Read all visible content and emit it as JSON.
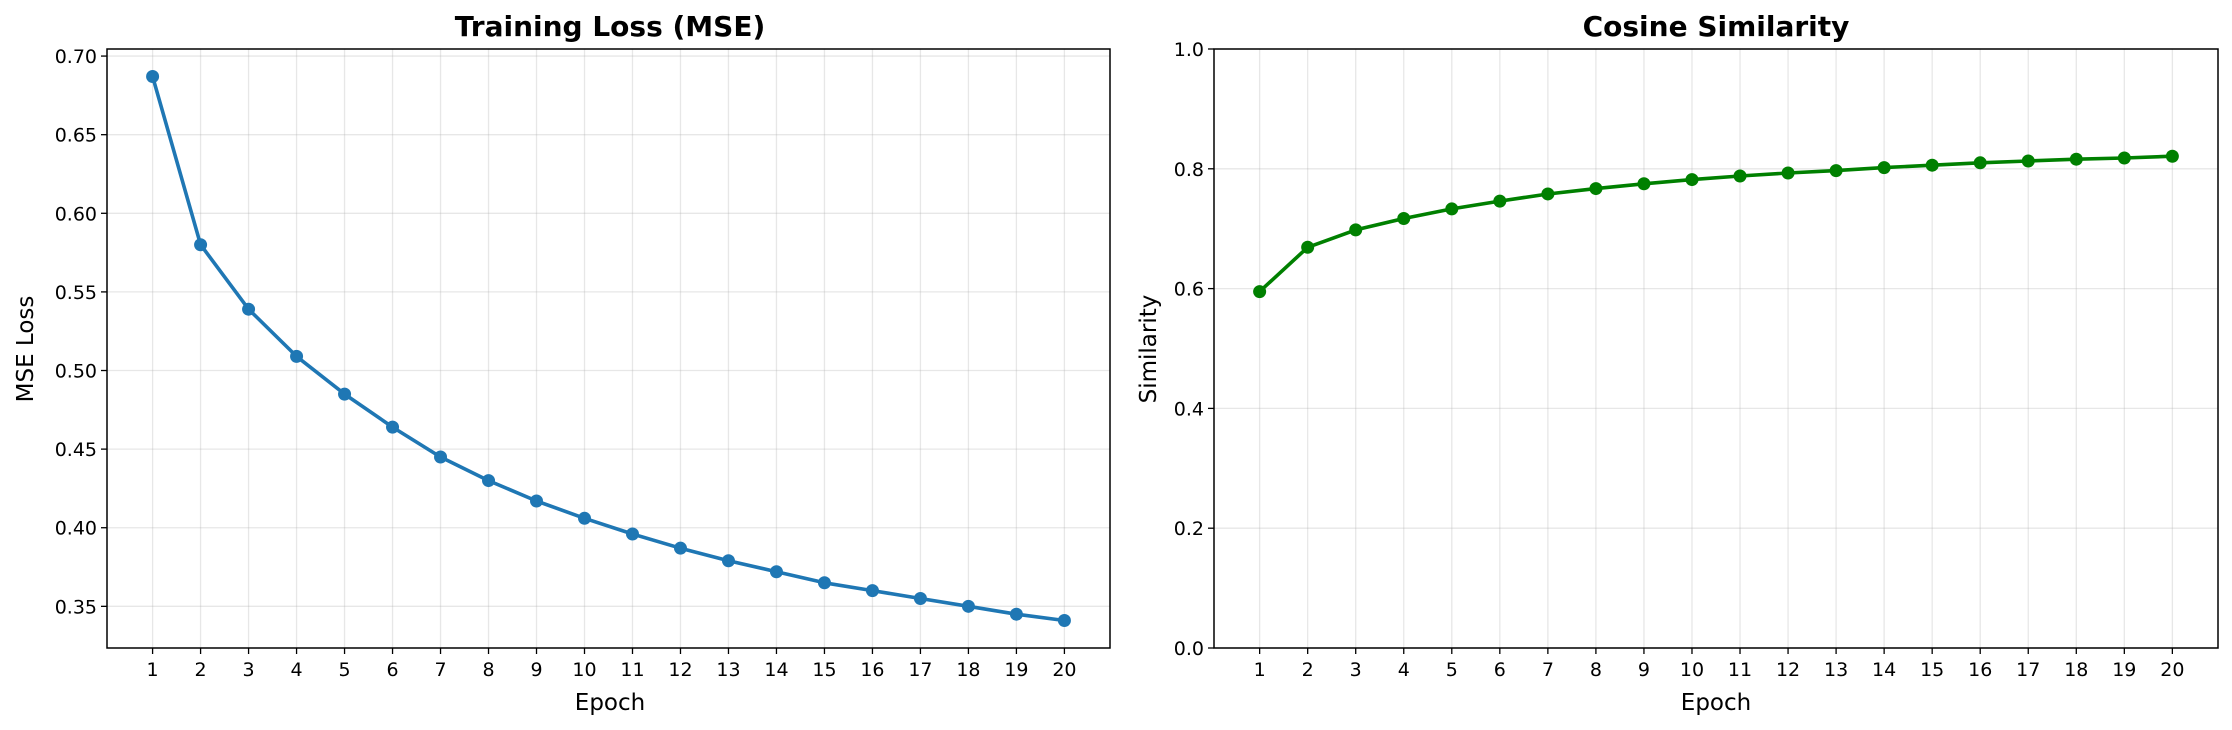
{
  "chart_data": [
    {
      "type": "line",
      "title": "Training Loss (MSE)",
      "xlabel": "Epoch",
      "ylabel": "MSE Loss",
      "categories": [
        "1",
        "2",
        "3",
        "4",
        "5",
        "6",
        "7",
        "8",
        "9",
        "10",
        "11",
        "12",
        "13",
        "14",
        "15",
        "16",
        "17",
        "18",
        "19",
        "20"
      ],
      "series": [
        {
          "name": "MSE Loss",
          "color": "#1f77b4",
          "values": [
            0.687,
            0.58,
            0.539,
            0.509,
            0.485,
            0.464,
            0.445,
            0.43,
            0.417,
            0.406,
            0.396,
            0.387,
            0.379,
            0.372,
            0.365,
            0.36,
            0.355,
            0.35,
            0.345,
            0.341
          ]
        }
      ],
      "xlim": [
        0.05,
        20.95
      ],
      "ylim": [
        0.3235,
        0.7045
      ],
      "yticks": [
        0.35,
        0.4,
        0.45,
        0.5,
        0.55,
        0.6,
        0.65,
        0.7
      ],
      "ytick_labels": [
        "0.35",
        "0.40",
        "0.45",
        "0.50",
        "0.55",
        "0.60",
        "0.65",
        "0.70"
      ],
      "grid": true
    },
    {
      "type": "line",
      "title": "Cosine Similarity",
      "xlabel": "Epoch",
      "ylabel": "Similarity",
      "categories": [
        "1",
        "2",
        "3",
        "4",
        "5",
        "6",
        "7",
        "8",
        "9",
        "10",
        "11",
        "12",
        "13",
        "14",
        "15",
        "16",
        "17",
        "18",
        "19",
        "20"
      ],
      "series": [
        {
          "name": "Similarity",
          "color": "#008000",
          "values": [
            0.595,
            0.669,
            0.698,
            0.717,
            0.733,
            0.746,
            0.758,
            0.767,
            0.775,
            0.782,
            0.788,
            0.793,
            0.797,
            0.802,
            0.806,
            0.81,
            0.813,
            0.816,
            0.818,
            0.821
          ]
        }
      ],
      "xlim": [
        0.05,
        20.95
      ],
      "ylim": [
        0.0,
        1.0
      ],
      "yticks": [
        0.0,
        0.2,
        0.4,
        0.6,
        0.8,
        1.0
      ],
      "ytick_labels": [
        "0.0",
        "0.2",
        "0.4",
        "0.6",
        "0.8",
        "1.0"
      ],
      "grid": true
    }
  ]
}
